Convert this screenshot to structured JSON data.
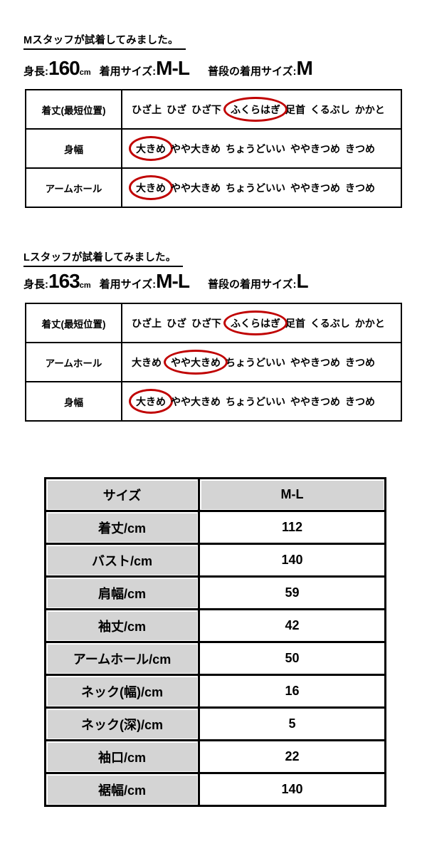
{
  "accent": {
    "circle_color": "#c00000",
    "table_gray": "#d4d4d4"
  },
  "fit_sections": [
    {
      "heading": "Mスタッフが試着してみました。",
      "stats": [
        {
          "label": "身長:",
          "value": "160",
          "unit": "cm"
        },
        {
          "label": "着用サイズ:",
          "value": "M-L",
          "unit": ""
        },
        {
          "label": "普段の着用サイズ:",
          "value": "M",
          "unit": ""
        }
      ],
      "rows": [
        {
          "label": "着丈(最短位置)",
          "options": [
            "ひざ上",
            "ひざ",
            "ひざ下",
            "ふくらはぎ",
            "足首",
            "くるぶし",
            "かかと"
          ],
          "circled": 3
        },
        {
          "label": "身幅",
          "options": [
            "大きめ",
            "やや大きめ",
            "ちょうどいい",
            "ややきつめ",
            "きつめ"
          ],
          "circled": 0
        },
        {
          "label": "アームホール",
          "options": [
            "大きめ",
            "やや大きめ",
            "ちょうどいい",
            "ややきつめ",
            "きつめ"
          ],
          "circled": 0
        }
      ]
    },
    {
      "heading": "Lスタッフが試着してみました。",
      "stats": [
        {
          "label": "身長:",
          "value": "163",
          "unit": "cm"
        },
        {
          "label": "着用サイズ:",
          "value": "M-L",
          "unit": ""
        },
        {
          "label": "普段の着用サイズ:",
          "value": "L",
          "unit": ""
        }
      ],
      "rows": [
        {
          "label": "着丈(最短位置)",
          "options": [
            "ひざ上",
            "ひざ",
            "ひざ下",
            "ふくらはぎ",
            "足首",
            "くるぶし",
            "かかと"
          ],
          "circled": 3
        },
        {
          "label": "アームホール",
          "options": [
            "大きめ",
            "やや大きめ",
            "ちょうどいい",
            "ややきつめ",
            "きつめ"
          ],
          "circled": 1
        },
        {
          "label": "身幅",
          "options": [
            "大きめ",
            "やや大きめ",
            "ちょうどいい",
            "ややきつめ",
            "きつめ"
          ],
          "circled": 0
        }
      ]
    }
  ],
  "size_table": {
    "header": {
      "label": "サイズ",
      "value": "M-L"
    },
    "rows": [
      {
        "label": "着丈/cm",
        "value": "112"
      },
      {
        "label": "バスト/cm",
        "value": "140"
      },
      {
        "label": "肩幅/cm",
        "value": "59"
      },
      {
        "label": "袖丈/cm",
        "value": "42"
      },
      {
        "label": "アームホール/cm",
        "value": "50"
      },
      {
        "label": "ネック(幅)/cm",
        "value": "16"
      },
      {
        "label": "ネック(深)/cm",
        "value": "5"
      },
      {
        "label": "袖口/cm",
        "value": "22"
      },
      {
        "label": "裾幅/cm",
        "value": "140"
      }
    ]
  }
}
